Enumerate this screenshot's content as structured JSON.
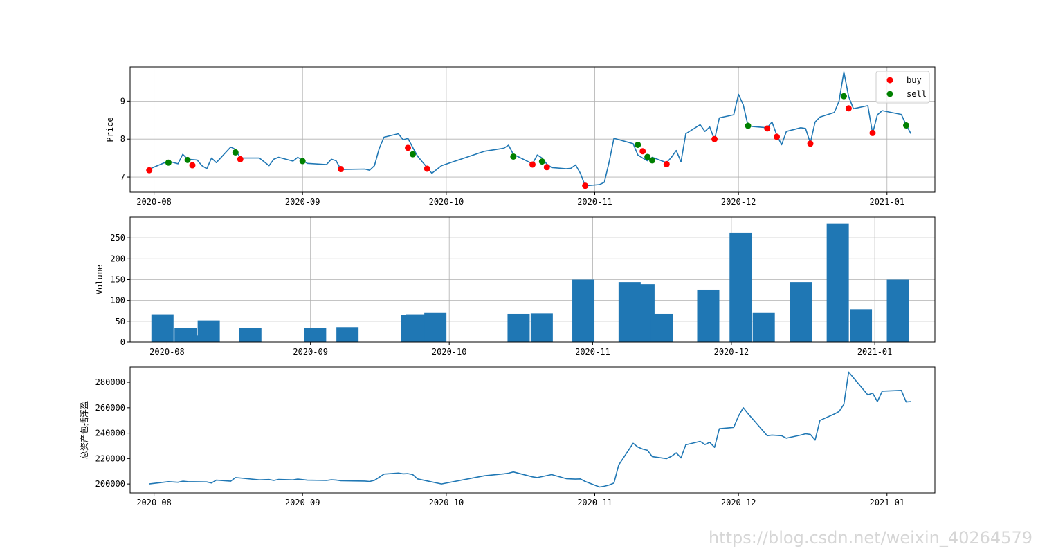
{
  "watermark": "https://blog.csdn.net/weixin_40264579",
  "colors": {
    "line": "#1f77b4",
    "bar": "#1f77b4",
    "buy": "#ff0000",
    "sell": "#008000",
    "grid": "#b0b0b0"
  },
  "chart_data": [
    {
      "type": "line",
      "ylabel": "Price",
      "ylim": [
        6.6,
        9.9
      ],
      "yticks": [
        {
          "v": 7,
          "label": "7"
        },
        {
          "v": 8,
          "label": "8"
        },
        {
          "v": 9,
          "label": "9"
        }
      ],
      "xlim": [
        "2020-07-27",
        "2021-01-11"
      ],
      "xticks": [
        "2020-08",
        "2020-09",
        "2020-10",
        "2020-11",
        "2020-12",
        "2021-01"
      ],
      "grid": true,
      "legend": {
        "position": "top-right",
        "entries": [
          {
            "label": "buy",
            "color": "#ff0000"
          },
          {
            "label": "sell",
            "color": "#008000"
          }
        ]
      },
      "series": [
        {
          "x": [
            "2020-07-31",
            "2020-08-04",
            "2020-08-06",
            "2020-08-07",
            "2020-08-08",
            "2020-08-10",
            "2020-08-11",
            "2020-08-12",
            "2020-08-13",
            "2020-08-14",
            "2020-08-17",
            "2020-08-18",
            "2020-08-19",
            "2020-08-23",
            "2020-08-25",
            "2020-08-26",
            "2020-08-27",
            "2020-08-30",
            "2020-08-31",
            "2020-09-02",
            "2020-09-06",
            "2020-09-07",
            "2020-09-08",
            "2020-09-09",
            "2020-09-14",
            "2020-09-15",
            "2020-09-16",
            "2020-09-17",
            "2020-09-18",
            "2020-09-21",
            "2020-09-22",
            "2020-09-23",
            "2020-09-24",
            "2020-09-25",
            "2020-09-28",
            "2020-09-30",
            "2020-10-09",
            "2020-10-13",
            "2020-10-14",
            "2020-10-15",
            "2020-10-19",
            "2020-10-20",
            "2020-10-21",
            "2020-10-22",
            "2020-10-23",
            "2020-10-26",
            "2020-10-27",
            "2020-10-28",
            "2020-10-29",
            "2020-10-30",
            "2020-11-02",
            "2020-11-03",
            "2020-11-04",
            "2020-11-05",
            "2020-11-09",
            "2020-11-10",
            "2020-11-11",
            "2020-11-12",
            "2020-11-13",
            "2020-11-16",
            "2020-11-17",
            "2020-11-18",
            "2020-11-19",
            "2020-11-20",
            "2020-11-23",
            "2020-11-24",
            "2020-11-25",
            "2020-11-26",
            "2020-11-27",
            "2020-11-30",
            "2020-12-01",
            "2020-12-02",
            "2020-12-03",
            "2020-12-04",
            "2020-12-07",
            "2020-12-08",
            "2020-12-09",
            "2020-12-10",
            "2020-12-11",
            "2020-12-14",
            "2020-12-15",
            "2020-12-16",
            "2020-12-17",
            "2020-12-18",
            "2020-12-21",
            "2020-12-22",
            "2020-12-23",
            "2020-12-24",
            "2020-12-25",
            "2020-12-28",
            "2020-12-29",
            "2020-12-30",
            "2020-12-31",
            "2021-01-04",
            "2021-01-05",
            "2021-01-06"
          ],
          "y": [
            7.21,
            7.42,
            7.35,
            7.6,
            7.47,
            7.45,
            7.3,
            7.22,
            7.5,
            7.38,
            7.79,
            7.73,
            7.5,
            7.5,
            7.3,
            7.47,
            7.52,
            7.42,
            7.52,
            7.36,
            7.33,
            7.47,
            7.43,
            7.2,
            7.21,
            7.18,
            7.3,
            7.75,
            8.05,
            8.14,
            7.98,
            8.02,
            7.78,
            7.55,
            7.1,
            7.3,
            7.68,
            7.76,
            7.84,
            7.6,
            7.35,
            7.58,
            7.5,
            7.34,
            7.25,
            7.22,
            7.23,
            7.32,
            7.1,
            6.77,
            6.8,
            6.86,
            7.4,
            8.02,
            7.88,
            7.58,
            7.5,
            7.43,
            7.52,
            7.38,
            7.52,
            7.7,
            7.4,
            8.14,
            8.38,
            8.2,
            8.32,
            7.98,
            8.56,
            8.64,
            9.18,
            8.9,
            8.35,
            8.33,
            8.3,
            8.45,
            8.1,
            7.85,
            8.2,
            8.3,
            8.28,
            7.9,
            8.45,
            8.58,
            8.7,
            9.0,
            9.77,
            9.12,
            8.8,
            8.88,
            8.15,
            8.64,
            8.75,
            8.65,
            8.37,
            8.14
          ]
        }
      ],
      "buy": {
        "x": [
          "2020-07-31",
          "2020-08-09",
          "2020-08-19",
          "2020-09-09",
          "2020-09-23",
          "2020-09-27",
          "2020-10-19",
          "2020-10-22",
          "2020-10-30",
          "2020-11-11",
          "2020-11-16",
          "2020-11-26",
          "2020-12-07",
          "2020-12-09",
          "2020-12-16",
          "2020-12-24",
          "2020-12-29"
        ],
        "y": [
          7.18,
          7.31,
          7.47,
          7.21,
          7.77,
          7.22,
          7.33,
          7.26,
          6.77,
          7.68,
          7.34,
          8.0,
          8.28,
          8.06,
          7.88,
          8.81,
          8.16
        ]
      },
      "sell": {
        "x": [
          "2020-08-04",
          "2020-08-08",
          "2020-08-18",
          "2020-09-01",
          "2020-09-24",
          "2020-10-15",
          "2020-10-21",
          "2020-11-10",
          "2020-11-12",
          "2020-11-13",
          "2020-12-03",
          "2020-12-23",
          "2021-01-05"
        ],
        "y": [
          7.38,
          7.45,
          7.65,
          7.42,
          7.6,
          7.54,
          7.41,
          7.85,
          7.53,
          7.44,
          8.35,
          9.13,
          8.36
        ]
      }
    },
    {
      "type": "bar",
      "ylabel": "Volume",
      "ylim": [
        0,
        300
      ],
      "yticks": [
        {
          "v": 0,
          "label": "0"
        },
        {
          "v": 50,
          "label": "50"
        },
        {
          "v": 100,
          "label": "100"
        },
        {
          "v": 150,
          "label": "150"
        },
        {
          "v": 200,
          "label": "200"
        },
        {
          "v": 250,
          "label": "250"
        }
      ],
      "xlim": [
        "2020-07-24",
        "2021-01-14"
      ],
      "xticks": [
        "2020-08",
        "2020-09",
        "2020-10",
        "2020-11",
        "2020-12",
        "2021-01"
      ],
      "grid": true,
      "bars": [
        {
          "x": "2020-07-31",
          "value": 67
        },
        {
          "x": "2020-08-05",
          "value": 34
        },
        {
          "x": "2020-08-09",
          "value": 16
        },
        {
          "x": "2020-08-10",
          "value": 52
        },
        {
          "x": "2020-08-19",
          "value": 34
        },
        {
          "x": "2020-09-02",
          "value": 34
        },
        {
          "x": "2020-09-09",
          "value": 36
        },
        {
          "x": "2020-09-23",
          "value": 65
        },
        {
          "x": "2020-09-24",
          "value": 67
        },
        {
          "x": "2020-09-28",
          "value": 70
        },
        {
          "x": "2020-10-16",
          "value": 68
        },
        {
          "x": "2020-10-21",
          "value": 69
        },
        {
          "x": "2020-10-30",
          "value": 150
        },
        {
          "x": "2020-11-09",
          "value": 144
        },
        {
          "x": "2020-11-12",
          "value": 139
        },
        {
          "x": "2020-11-16",
          "value": 68
        },
        {
          "x": "2020-11-26",
          "value": 126
        },
        {
          "x": "2020-12-03",
          "value": 262
        },
        {
          "x": "2020-12-08",
          "value": 70
        },
        {
          "x": "2020-12-16",
          "value": 144
        },
        {
          "x": "2020-12-24",
          "value": 284
        },
        {
          "x": "2020-12-29",
          "value": 79
        },
        {
          "x": "2021-01-06",
          "value": 150
        }
      ]
    },
    {
      "type": "line",
      "ylabel": "总资产包括浮盈",
      "ylim": [
        193000,
        292000
      ],
      "yticks": [
        {
          "v": 200000,
          "label": "200000"
        },
        {
          "v": 220000,
          "label": "220000"
        },
        {
          "v": 240000,
          "label": "240000"
        },
        {
          "v": 260000,
          "label": "260000"
        },
        {
          "v": 280000,
          "label": "280000"
        }
      ],
      "xlim": [
        "2020-07-27",
        "2021-01-11"
      ],
      "xticks": [
        "2020-08",
        "2020-09",
        "2020-10",
        "2020-11",
        "2020-12",
        "2021-01"
      ],
      "grid": false,
      "series": [
        {
          "x": [
            "2020-07-31",
            "2020-08-04",
            "2020-08-06",
            "2020-08-07",
            "2020-08-08",
            "2020-08-12",
            "2020-08-13",
            "2020-08-14",
            "2020-08-17",
            "2020-08-18",
            "2020-08-19",
            "2020-08-23",
            "2020-08-25",
            "2020-08-26",
            "2020-08-27",
            "2020-08-30",
            "2020-08-31",
            "2020-09-02",
            "2020-09-06",
            "2020-09-07",
            "2020-09-08",
            "2020-09-09",
            "2020-09-14",
            "2020-09-15",
            "2020-09-16",
            "2020-09-17",
            "2020-09-18",
            "2020-09-21",
            "2020-09-22",
            "2020-09-23",
            "2020-09-24",
            "2020-09-25",
            "2020-09-30",
            "2020-10-09",
            "2020-10-13",
            "2020-10-14",
            "2020-10-15",
            "2020-10-19",
            "2020-10-20",
            "2020-10-23",
            "2020-10-26",
            "2020-10-27",
            "2020-10-28",
            "2020-10-29",
            "2020-10-30",
            "2020-11-02",
            "2020-11-03",
            "2020-11-04",
            "2020-11-05",
            "2020-11-06",
            "2020-11-09",
            "2020-11-10",
            "2020-11-11",
            "2020-11-12",
            "2020-11-13",
            "2020-11-16",
            "2020-11-17",
            "2020-11-18",
            "2020-11-19",
            "2020-11-20",
            "2020-11-23",
            "2020-11-24",
            "2020-11-25",
            "2020-11-26",
            "2020-11-27",
            "2020-11-30",
            "2020-12-01",
            "2020-12-02",
            "2020-12-03",
            "2020-12-07",
            "2020-12-08",
            "2020-12-10",
            "2020-12-11",
            "2020-12-14",
            "2020-12-15",
            "2020-12-16",
            "2020-12-17",
            "2020-12-18",
            "2020-12-21",
            "2020-12-22",
            "2020-12-23",
            "2020-12-24",
            "2020-12-28",
            "2020-12-29",
            "2020-12-30",
            "2020-12-31",
            "2021-01-04",
            "2021-01-05",
            "2021-01-06"
          ],
          "y": [
            200000,
            201800,
            201300,
            202200,
            201800,
            201600,
            200800,
            203000,
            202200,
            205000,
            204700,
            203200,
            203500,
            202800,
            203600,
            203200,
            203800,
            203000,
            202800,
            203300,
            203100,
            202500,
            202300,
            202000,
            202900,
            205300,
            207800,
            208600,
            208000,
            208200,
            207400,
            204000,
            200000,
            206500,
            208000,
            208500,
            209500,
            205600,
            205000,
            207400,
            204200,
            204000,
            203800,
            204000,
            202000,
            197600,
            198200,
            199200,
            200700,
            215000,
            232000,
            229000,
            227500,
            226500,
            221500,
            220000,
            221800,
            224500,
            220500,
            230800,
            233500,
            231000,
            232800,
            228800,
            243500,
            244500,
            253500,
            260000,
            255300,
            238000,
            238500,
            238000,
            236000,
            238500,
            239500,
            239000,
            234500,
            250000,
            255000,
            257000,
            262700,
            288000,
            270000,
            271500,
            264800,
            273000,
            273600,
            264500,
            264800
          ]
        }
      ]
    }
  ]
}
